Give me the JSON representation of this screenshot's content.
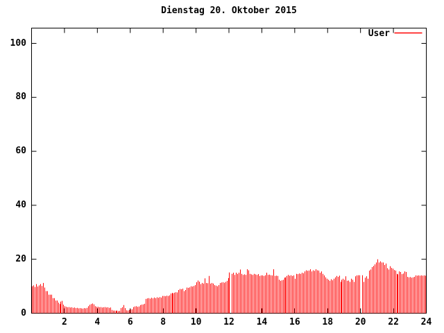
{
  "title": "Dienstag 20. Oktober 2015",
  "legend": {
    "label": "User",
    "color": "#ff0000",
    "position": "top-right"
  },
  "colors": {
    "background": "#ffffff",
    "axis": "#000000",
    "bar": "#ff0000"
  },
  "chart_data": {
    "type": "bar",
    "title": "Dienstag 20. Oktober 2015",
    "xlabel": "",
    "ylabel": "",
    "x_unit": "hour of day",
    "interval_minutes": 5,
    "xlim": [
      0,
      24
    ],
    "ylim": [
      0,
      105
    ],
    "x_ticks": [
      2,
      4,
      6,
      8,
      10,
      12,
      14,
      16,
      18,
      20,
      22,
      24
    ],
    "y_ticks": [
      0,
      20,
      40,
      60,
      80,
      100
    ],
    "grid": false,
    "legend_position": "top-right",
    "series": [
      {
        "name": "User",
        "color": "#ff0000",
        "values": [
          10.0,
          10.3,
          9.7,
          10.8,
          9.9,
          10.3,
          10.8,
          10.1,
          11.2,
          9.5,
          8.2,
          8.2,
          6.9,
          6.9,
          6.9,
          5.6,
          5.6,
          4.7,
          4.7,
          3.9,
          3.4,
          4.3,
          4.6,
          3.2,
          2.6,
          2.4,
          2.2,
          2.3,
          2.1,
          2.2,
          2.0,
          2.1,
          1.9,
          2.0,
          1.8,
          1.9,
          1.8,
          1.7,
          1.9,
          1.8,
          2.0,
          2.6,
          3.1,
          3.4,
          3.6,
          3.3,
          2.6,
          2.4,
          2.4,
          2.2,
          2.3,
          2.1,
          2.2,
          2.3,
          2.1,
          2.2,
          2.0,
          2.1,
          1.2,
          1.0,
          1.0,
          0.9,
          1.0,
          0.8,
          0.9,
          1.9,
          2.2,
          3.0,
          1.9,
          1.1,
          1.0,
          1.2,
          1.4,
          1.5,
          2.3,
          2.5,
          2.6,
          2.4,
          2.5,
          3.0,
          3.2,
          3.3,
          3.5,
          5.3,
          5.5,
          5.6,
          5.4,
          5.7,
          5.5,
          5.8,
          5.6,
          5.9,
          5.7,
          6.0,
          5.8,
          6.4,
          6.4,
          6.3,
          6.5,
          6.4,
          6.6,
          7.3,
          7.5,
          7.4,
          7.6,
          7.8,
          7.7,
          8.6,
          9.0,
          8.9,
          9.1,
          8.2,
          8.6,
          9.5,
          9.4,
          9.6,
          10.0,
          9.9,
          10.1,
          10.4,
          11.5,
          12.1,
          11.7,
          10.8,
          11.2,
          11.0,
          12.9,
          11.2,
          11.1,
          13.8,
          11.0,
          11.2,
          11.0,
          10.4,
          10.2,
          10.0,
          10.4,
          11.2,
          11.4,
          11.5,
          11.3,
          11.6,
          12.0,
          13.0,
          15.1,
          0,
          14.6,
          15.0,
          14.2,
          15.0,
          14.6,
          15.0,
          16.2,
          14.6,
          14.2,
          14.4,
          14.2,
          16.3,
          15.9,
          14.6,
          14.4,
          14.2,
          14.6,
          14.4,
          14.2,
          14.5,
          13.8,
          14.0,
          14.0,
          13.8,
          14.1,
          15.0,
          14.2,
          14.3,
          14.1,
          14.0,
          16.3,
          13.8,
          13.9,
          13.8,
          12.4,
          12.0,
          12.2,
          12.4,
          13.2,
          13.3,
          13.8,
          14.2,
          13.9,
          14.1,
          13.8,
          14.0,
          12.8,
          14.6,
          14.5,
          14.7,
          14.6,
          15.0,
          14.8,
          15.5,
          15.9,
          15.7,
          15.8,
          16.3,
          15.5,
          15.9,
          15.7,
          16.3,
          15.9,
          15.8,
          15.0,
          15.5,
          14.6,
          14.0,
          13.3,
          12.8,
          12.4,
          12.0,
          12.6,
          12.2,
          12.8,
          13.3,
          13.8,
          13.5,
          13.9,
          11.6,
          12.4,
          12.8,
          12.4,
          13.7,
          12.0,
          12.1,
          11.6,
          12.8,
          12.4,
          11.6,
          13.7,
          14.0,
          14.1,
          14.1,
          0,
          14.1,
          11.6,
          13.2,
          13.7,
          12.8,
          15.8,
          16.2,
          17.1,
          17.5,
          18.1,
          18.8,
          20.0,
          18.8,
          19.2,
          18.8,
          18.8,
          17.9,
          18.4,
          16.7,
          16.2,
          17.4,
          16.8,
          16.5,
          16.0,
          15.8,
          14.6,
          14.4,
          15.5,
          15.3,
          14.5,
          14.7,
          15.5,
          15.3,
          13.5,
          13.3,
          13.4,
          13.2,
          13.3,
          13.5,
          14.0,
          13.9,
          14.0,
          13.9,
          14.0,
          13.9,
          14.0,
          13.9
        ]
      }
    ]
  }
}
